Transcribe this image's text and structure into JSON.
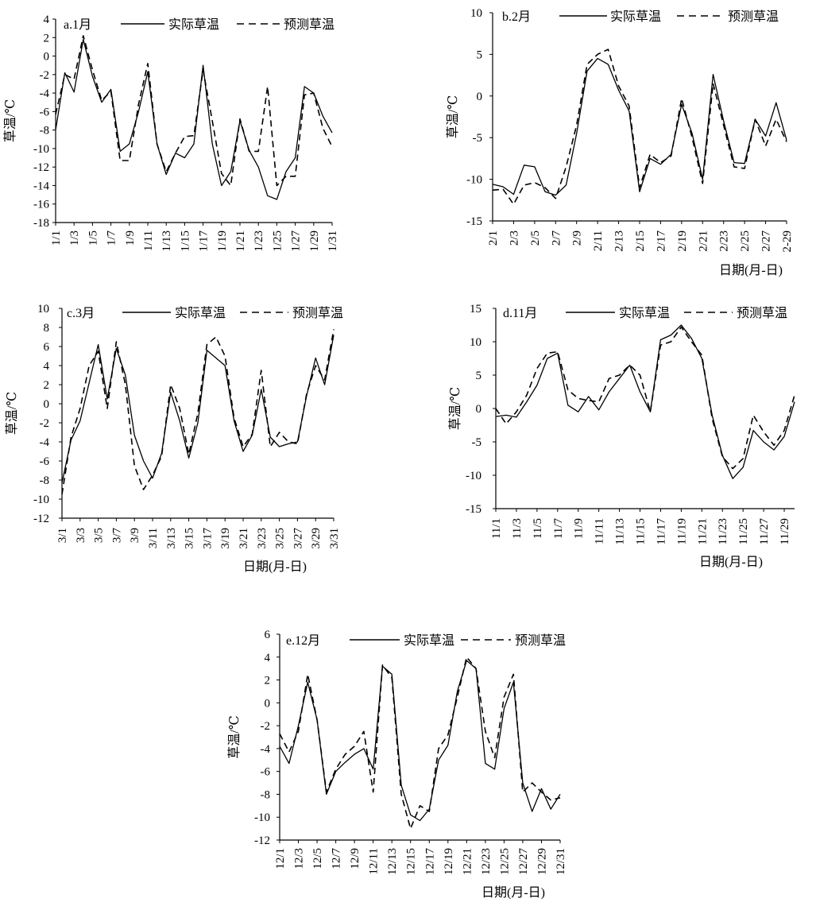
{
  "chart_data": [
    {
      "type": "line",
      "title": "a.1月",
      "xlabel": "",
      "ylabel": "草温/℃",
      "ylim": [
        -18,
        4
      ],
      "ystep": 2,
      "grid": false,
      "legend_position": "top",
      "x": [
        "1/1",
        "1/2",
        "1/3",
        "1/4",
        "1/5",
        "1/6",
        "1/7",
        "1/8",
        "1/9",
        "1/10",
        "1/11",
        "1/12",
        "1/13",
        "1/14",
        "1/15",
        "1/16",
        "1/17",
        "1/18",
        "1/19",
        "1/20",
        "1/21",
        "1/22",
        "1/23",
        "1/24",
        "1/25",
        "1/26",
        "1/27",
        "1/28",
        "1/29",
        "1/30",
        "1/31"
      ],
      "xtick_labels": [
        "1/1",
        "1/3",
        "1/5",
        "1/7",
        "1/9",
        "1/11",
        "1/13",
        "1/15",
        "1/17",
        "1/19",
        "1/21",
        "1/23",
        "1/25",
        "1/27",
        "1/29",
        "1/31"
      ],
      "series": [
        {
          "name": "实际草温",
          "dash": "solid",
          "values": [
            -8,
            -1.8,
            -3.9,
            1.8,
            -2.2,
            -5,
            -3.6,
            -10.3,
            -9.5,
            -6,
            -1.7,
            -9.5,
            -12.8,
            -10.5,
            -11,
            -9.5,
            -1,
            -9.5,
            -14,
            -12.5,
            -7,
            -10.2,
            -12,
            -15.1,
            -15.5,
            -12.5,
            -11,
            -3.3,
            -4,
            -6.5,
            -8.3
          ]
        },
        {
          "name": "预测草温",
          "dash": "dashed",
          "values": [
            -6.3,
            -2,
            -2.5,
            2.2,
            -1.5,
            -4.8,
            -3.8,
            -11.3,
            -11.3,
            -5.2,
            -0.8,
            -9.5,
            -12.5,
            -10.5,
            -8.7,
            -8.6,
            -1.5,
            -7,
            -12.7,
            -14,
            -6.8,
            -10.3,
            -10.3,
            -3.3,
            -14,
            -13,
            -13,
            -4.2,
            -4,
            -7.8,
            -9.8
          ]
        }
      ]
    },
    {
      "type": "line",
      "title": "b.2月",
      "xlabel": "日期(月-日)",
      "ylabel": "草温/℃",
      "ylim": [
        -15,
        10
      ],
      "ystep": 5,
      "grid": false,
      "legend_position": "top",
      "x": [
        "2/1",
        "2/2",
        "2/3",
        "2/4",
        "2/5",
        "2/6",
        "2/7",
        "2/8",
        "2/9",
        "2/10",
        "2/11",
        "2/12",
        "2/13",
        "2/14",
        "2/15",
        "2/16",
        "2/17",
        "2/18",
        "2/19",
        "2/20",
        "2/21",
        "2/22",
        "2/23",
        "2/24",
        "2/25",
        "2/26",
        "2/27",
        "2/28",
        "2-29"
      ],
      "xtick_labels": [
        "2/1",
        "2/3",
        "2/5",
        "2/7",
        "2/9",
        "2/11",
        "2/13",
        "2/15",
        "2/17",
        "2/19",
        "2/21",
        "2/23",
        "2/25",
        "2/27",
        "2-29"
      ],
      "series": [
        {
          "name": "实际草温",
          "dash": "solid",
          "values": [
            -10.6,
            -10.9,
            -11.8,
            -8.3,
            -8.5,
            -11.5,
            -11.9,
            -10.7,
            -4.5,
            3,
            4.5,
            3.8,
            0.7,
            -1.8,
            -11.5,
            -7.5,
            -8.2,
            -7,
            -1,
            -4.5,
            -10,
            2.6,
            -3,
            -8,
            -8.1,
            -2.8,
            -4.8,
            -0.8,
            -5.3
          ]
        },
        {
          "name": "预测草温",
          "dash": "dashed",
          "values": [
            -11.3,
            -11.2,
            -13,
            -10.7,
            -10.4,
            -11,
            -12.3,
            -8.5,
            -3.5,
            3.8,
            5,
            5.6,
            1.2,
            -1.2,
            -11,
            -7,
            -8,
            -7.2,
            -0.3,
            -5,
            -10.5,
            1.5,
            -3.5,
            -8.5,
            -8.7,
            -2.8,
            -6,
            -2.8,
            -5.5
          ]
        }
      ]
    },
    {
      "type": "line",
      "title": "c.3月",
      "xlabel": "日期(月-日)",
      "ylabel": "草温/℃",
      "ylim": [
        -12,
        10
      ],
      "ystep": 2,
      "grid": false,
      "legend_position": "top",
      "x": [
        "3/1",
        "3/2",
        "3/3",
        "3/4",
        "3/5",
        "3/6",
        "3/7",
        "3/8",
        "3/9",
        "3/10",
        "3/11",
        "3/12",
        "3/13",
        "3/14",
        "3/15",
        "3/16",
        "3/17",
        "3/18",
        "3/19",
        "3/20",
        "3/21",
        "3/22",
        "3/23",
        "3/24",
        "3/25",
        "3/26",
        "3/27",
        "3/28",
        "3/29",
        "3/30",
        "3/31"
      ],
      "xtick_labels": [
        "3/1",
        "3/3",
        "3/5",
        "3/7",
        "3/9",
        "3/11",
        "3/13",
        "3/15",
        "3/17",
        "3/19",
        "3/21",
        "3/23",
        "3/25",
        "3/27",
        "3/29",
        "3/31"
      ],
      "series": [
        {
          "name": "实际草温",
          "dash": "solid",
          "values": [
            -8.3,
            -3.8,
            -1.8,
            2.2,
            6.2,
            0.5,
            5.8,
            3,
            -3.3,
            -6,
            -7.8,
            -5.2,
            1.2,
            -1.8,
            -5.7,
            -2,
            5.6,
            4.8,
            4,
            -1.8,
            -5,
            -3.3,
            1.5,
            -3.5,
            -4.5,
            -4.2,
            -4,
            0.8,
            4.8,
            2,
            7.2
          ]
        },
        {
          "name": "预测草温",
          "dash": "dashed",
          "values": [
            -9.5,
            -3.5,
            -0.5,
            4,
            5.5,
            -0.5,
            6.5,
            2,
            -6.5,
            -9,
            -7.5,
            -5.5,
            2,
            -0.5,
            -5.3,
            -1,
            6.2,
            7,
            5,
            -1.5,
            -4.5,
            -3.2,
            3.5,
            -4.5,
            -3,
            -4,
            -4.2,
            1,
            4,
            2.5,
            7.8
          ]
        }
      ]
    },
    {
      "type": "line",
      "title": "d.11月",
      "xlabel": "日期(月-日)",
      "ylabel": "草温/℃",
      "ylim": [
        -15,
        15
      ],
      "ystep": 5,
      "grid": false,
      "legend_position": "top",
      "x": [
        "11/1",
        "11/2",
        "11/3",
        "11/4",
        "11/5",
        "11/6",
        "11/7",
        "11/8",
        "11/9",
        "11/10",
        "11/11",
        "11/12",
        "11/13",
        "11/14",
        "11/15",
        "11/16",
        "11/17",
        "11/18",
        "11/19",
        "11/20",
        "11/21",
        "11/22",
        "11/23",
        "11/24",
        "11/25",
        "11/26",
        "11/27",
        "11/28",
        "11/29",
        "11/30"
      ],
      "xtick_labels": [
        "11/1",
        "11/3",
        "11/5",
        "11/7",
        "11/9",
        "11/11",
        "11/13",
        "11/15",
        "11/17",
        "11/19",
        "11/21",
        "11/23",
        "11/25",
        "11/27",
        "11/29"
      ],
      "series": [
        {
          "name": "实际草温",
          "dash": "solid",
          "values": [
            -1.2,
            -1,
            -1.3,
            1,
            3.5,
            7.5,
            8.3,
            0.5,
            -0.5,
            1.8,
            -0.2,
            2.5,
            4.5,
            6.5,
            2.5,
            -0.5,
            10.3,
            11,
            12.5,
            10.5,
            7.5,
            -1,
            -7,
            -10.5,
            -8.8,
            -3.3,
            -5,
            -6.2,
            -4.2,
            1
          ]
        },
        {
          "name": "预测草温",
          "dash": "dashed",
          "values": [
            0,
            -2.3,
            -0.5,
            2,
            6,
            8.3,
            8.5,
            2.8,
            1.5,
            1.2,
            1,
            4.5,
            5,
            6.5,
            5,
            -0.5,
            9.5,
            10,
            12.2,
            10,
            8,
            -1.5,
            -7.2,
            -9,
            -7.5,
            -1,
            -3.5,
            -5.5,
            -3.3,
            2
          ]
        }
      ]
    },
    {
      "type": "line",
      "title": "e.12月",
      "xlabel": "日期(月-日)",
      "ylabel": "草温/℃",
      "ylim": [
        -12,
        6
      ],
      "ystep": 2,
      "grid": false,
      "legend_position": "top",
      "x": [
        "12/1",
        "12/2",
        "12/3",
        "12/4",
        "12/5",
        "12/6",
        "12/7",
        "12/8",
        "12/9",
        "12/10",
        "12/11",
        "12/12",
        "12/13",
        "12/14",
        "12/15",
        "12/16",
        "12/17",
        "12/18",
        "12/19",
        "12/20",
        "12/21",
        "12/22",
        "12/23",
        "12/24",
        "12/25",
        "12/26",
        "12/27",
        "12/28",
        "12/29",
        "12/30",
        "12/31"
      ],
      "xtick_labels": [
        "12/1",
        "12/3",
        "12/5",
        "12/7",
        "12/9",
        "12/11",
        "12/13",
        "12/15",
        "12/17",
        "12/19",
        "12/21",
        "12/23",
        "12/25",
        "12/27",
        "12/29",
        "12/31"
      ],
      "series": [
        {
          "name": "实际草温",
          "dash": "solid",
          "values": [
            -3.8,
            -5.3,
            -2,
            1.8,
            -1.5,
            -8,
            -6,
            -5.2,
            -4.5,
            -4,
            -5.8,
            3.2,
            2.5,
            -7.2,
            -9.8,
            -10.3,
            -9.3,
            -5,
            -3.7,
            1,
            3.7,
            3,
            -5.3,
            -5.8,
            -0.5,
            1.8,
            -7,
            -9.5,
            -7.5,
            -9.3,
            -8
          ]
        },
        {
          "name": "预测草温",
          "dash": "dashed",
          "values": [
            -2.7,
            -4.3,
            -2.5,
            2.5,
            -1.5,
            -7.8,
            -5.8,
            -4.5,
            -3.8,
            -2.5,
            -7.8,
            3.3,
            2.2,
            -8,
            -11,
            -9,
            -9.5,
            -4,
            -2.8,
            0.5,
            4,
            3,
            -2.5,
            -4.8,
            0.5,
            2.5,
            -7.8,
            -7,
            -7.8,
            -8.5,
            -8.3
          ]
        }
      ]
    }
  ]
}
